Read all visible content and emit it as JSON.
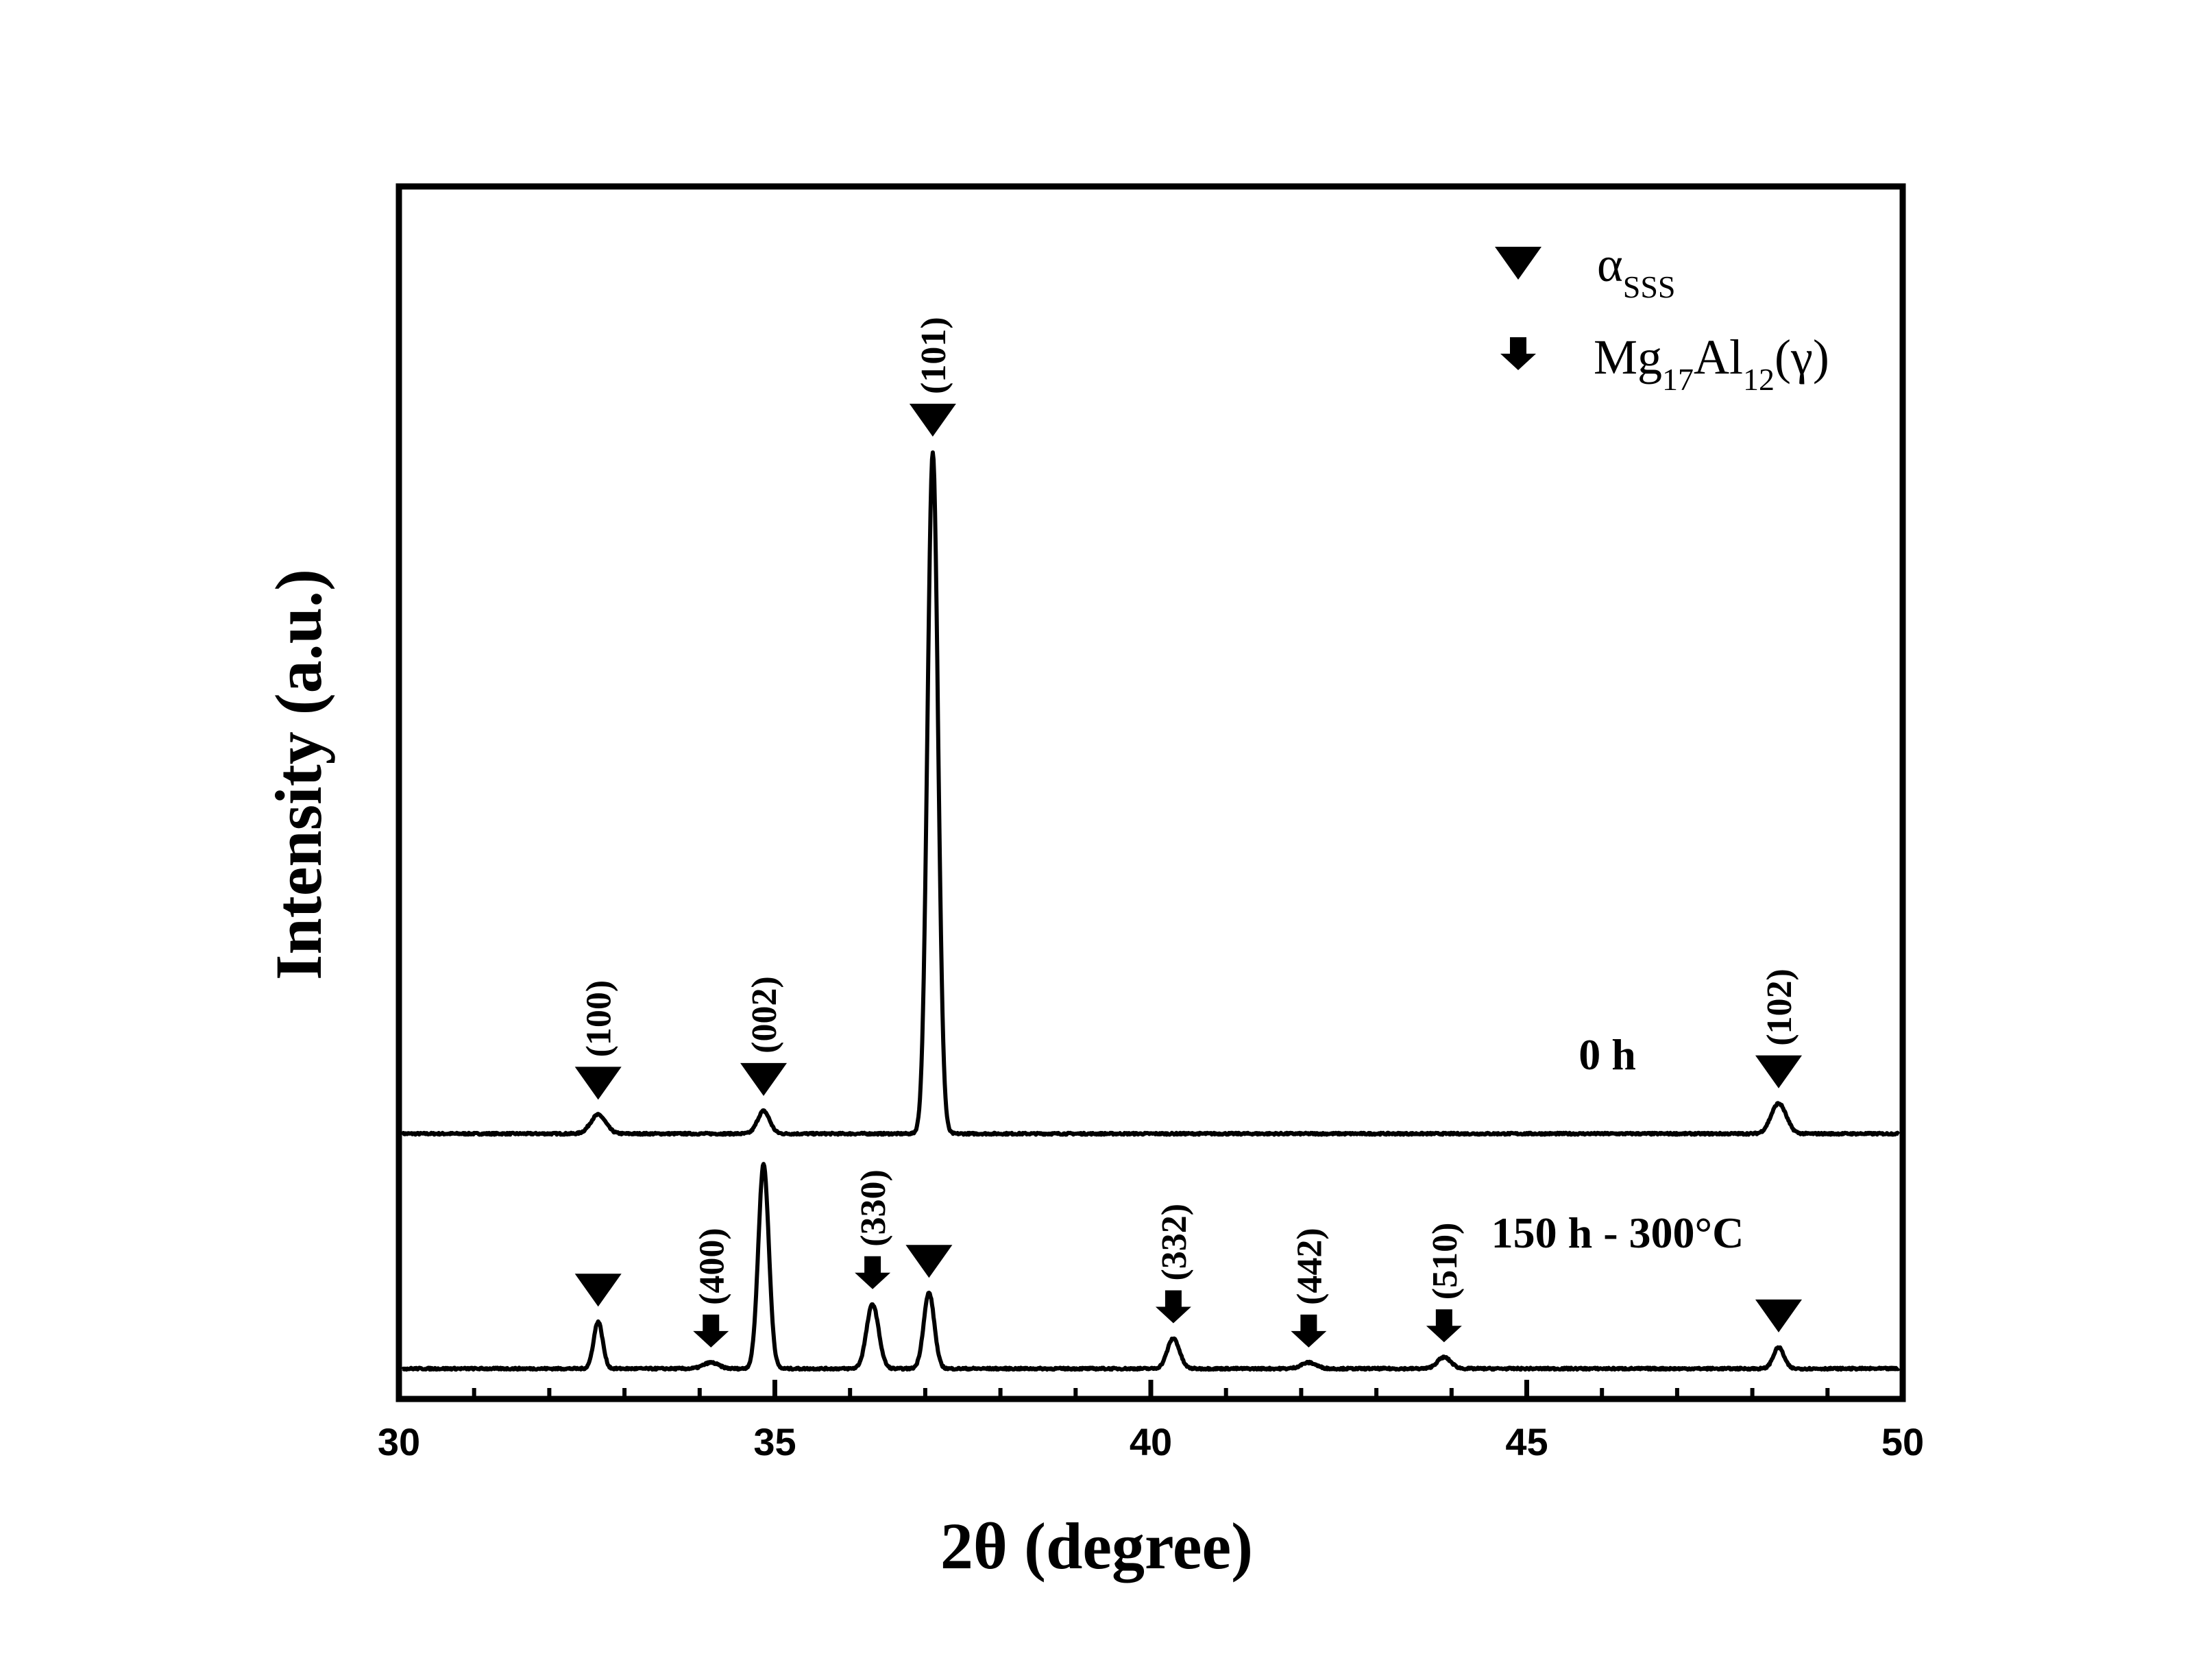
{
  "chart_data": {
    "type": "line",
    "xlabel": "2θ (degree)",
    "ylabel": "Intensity (a.u.)",
    "xlim": [
      30,
      50
    ],
    "ylim": [
      0,
      160
    ],
    "x_ticks": [
      30,
      35,
      40,
      45,
      50
    ],
    "x_tick_labels": [
      "30",
      "35",
      "40",
      "45",
      "50"
    ],
    "x_minor_ticks": [
      31,
      32,
      33,
      34,
      36,
      37,
      38,
      39,
      41,
      42,
      43,
      44,
      46,
      47,
      48,
      49
    ],
    "grid": false,
    "legend": {
      "placement": "top-right",
      "entries": [
        {
          "marker": "triangle-down",
          "main": "α",
          "sub": "SSS"
        },
        {
          "marker": "arrow-down",
          "parts": [
            {
              "text": "Mg",
              "sub": false
            },
            {
              "text": "17",
              "sub": true
            },
            {
              "text": "Al",
              "sub": false
            },
            {
              "text": "12",
              "sub": true
            },
            {
              "text": "(γ)",
              "sub": false
            }
          ]
        }
      ]
    },
    "series": [
      {
        "label": "0 h",
        "baseline": 35,
        "peaks": [
          {
            "x": 32.65,
            "h": 2.5,
            "w": 0.1
          },
          {
            "x": 34.85,
            "h": 3.0,
            "w": 0.08
          },
          {
            "x": 37.1,
            "h": 90.0,
            "w": 0.07
          },
          {
            "x": 48.35,
            "h": 4.0,
            "w": 0.1
          }
        ],
        "markers": [
          {
            "x": 32.65,
            "type": "triangle",
            "label": "(100)"
          },
          {
            "x": 34.85,
            "type": "triangle",
            "label": "(002)"
          },
          {
            "x": 37.1,
            "type": "triangle",
            "label": "(101)"
          },
          {
            "x": 48.35,
            "type": "triangle",
            "label": "(102)"
          }
        ]
      },
      {
        "label": "150 h - 300°C",
        "baseline": 4,
        "peaks": [
          {
            "x": 32.65,
            "h": 6.2,
            "w": 0.06
          },
          {
            "x": 34.15,
            "h": 0.8,
            "w": 0.1
          },
          {
            "x": 34.85,
            "h": 27.0,
            "w": 0.07
          },
          {
            "x": 36.3,
            "h": 8.5,
            "w": 0.08
          },
          {
            "x": 37.05,
            "h": 10.0,
            "w": 0.07
          },
          {
            "x": 40.3,
            "h": 4.0,
            "w": 0.08
          },
          {
            "x": 42.1,
            "h": 0.8,
            "w": 0.1
          },
          {
            "x": 43.9,
            "h": 1.5,
            "w": 0.09
          },
          {
            "x": 48.35,
            "h": 2.8,
            "w": 0.07
          }
        ],
        "markers": [
          {
            "x": 32.65,
            "type": "triangle",
            "label": ""
          },
          {
            "x": 34.15,
            "type": "arrow",
            "label": "(400)"
          },
          {
            "x": 36.3,
            "type": "arrow",
            "label": "(330)"
          },
          {
            "x": 37.05,
            "type": "triangle",
            "label": ""
          },
          {
            "x": 40.3,
            "type": "arrow",
            "label": "(332)"
          },
          {
            "x": 42.1,
            "type": "arrow",
            "label": "(442)"
          },
          {
            "x": 43.9,
            "type": "arrow",
            "label": "(510)"
          },
          {
            "x": 48.35,
            "type": "triangle",
            "label": ""
          }
        ]
      }
    ]
  }
}
